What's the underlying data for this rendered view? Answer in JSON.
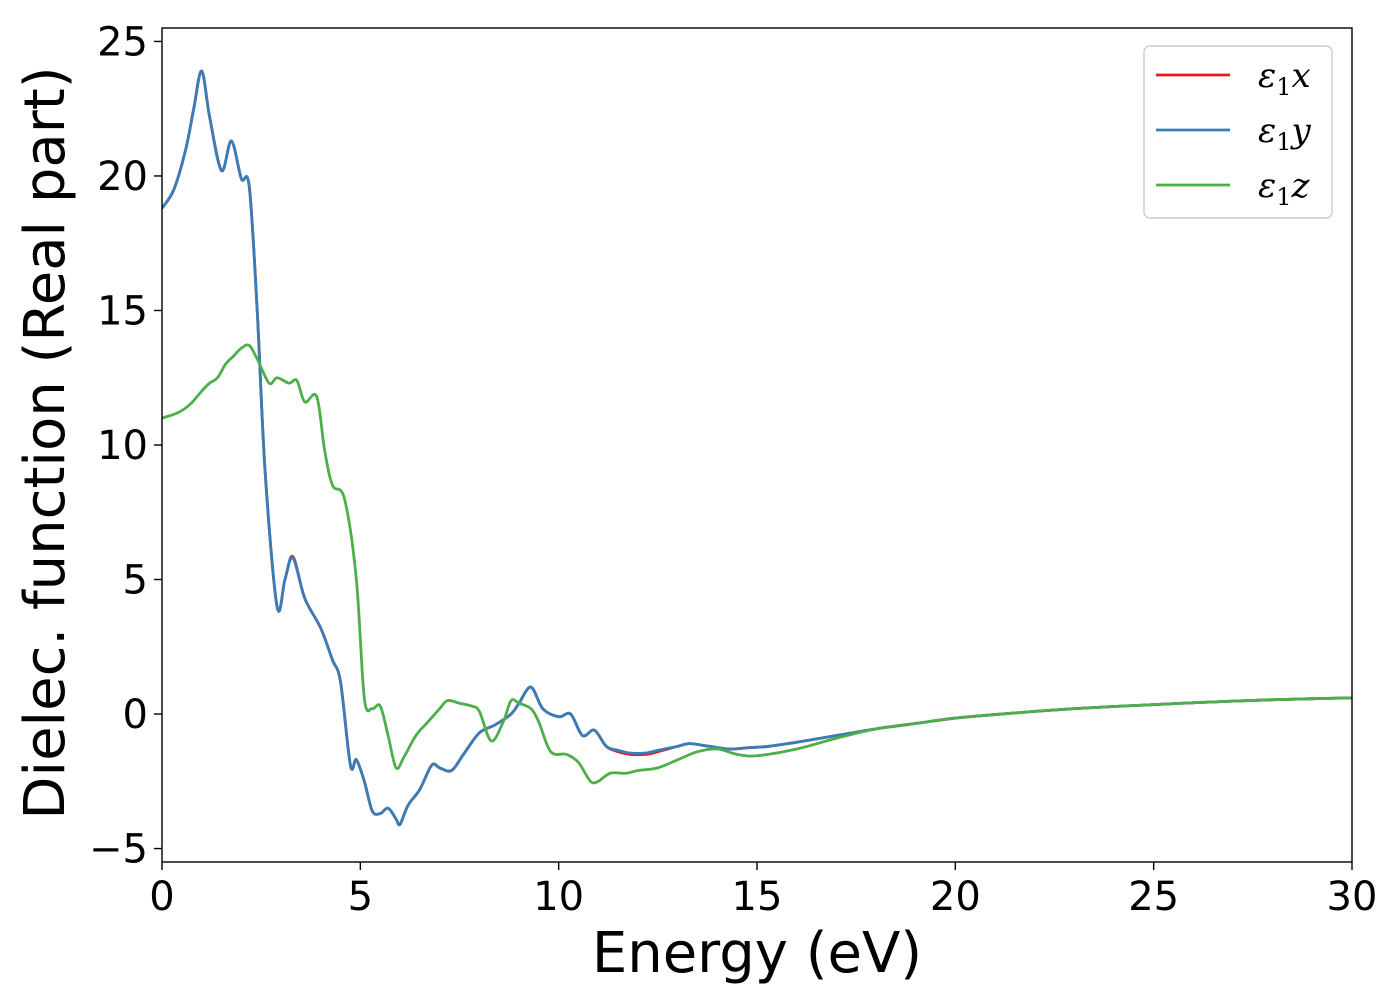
{
  "chart_data": {
    "type": "line",
    "title": "",
    "xlabel": "Energy (eV)",
    "ylabel": "Dielec. function (Real part)",
    "xlim": [
      0,
      30
    ],
    "ylim": [
      -5.5,
      25.5
    ],
    "x_ticks": [
      "0",
      "5",
      "10",
      "15",
      "20",
      "25",
      "30"
    ],
    "x_tick_values": [
      0,
      5,
      10,
      15,
      20,
      25,
      30
    ],
    "y_ticks": [
      "−5",
      "0",
      "5",
      "10",
      "15",
      "20",
      "25"
    ],
    "y_tick_values": [
      -5,
      0,
      5,
      10,
      15,
      20,
      25
    ],
    "grid": false,
    "legend_position": "top-right",
    "series": [
      {
        "legend_main": "ε",
        "legend_sub": "1",
        "legend_axis": "x",
        "color": "#e41a1c",
        "x": [
          0,
          0.3,
          0.6,
          0.8,
          1.0,
          1.2,
          1.5,
          1.75,
          2.0,
          2.2,
          2.4,
          2.6,
          2.9,
          3.1,
          3.3,
          3.6,
          4.0,
          4.3,
          4.5,
          4.75,
          4.9,
          5.1,
          5.3,
          5.5,
          5.7,
          5.9,
          6.0,
          6.2,
          6.5,
          6.8,
          7.0,
          7.3,
          7.6,
          8.0,
          8.4,
          8.8,
          9.0,
          9.3,
          9.6,
          10.0,
          10.3,
          10.6,
          10.9,
          11.2,
          11.5,
          11.8,
          12.2,
          12.5,
          13.0,
          13.3,
          13.8,
          14.3,
          14.8,
          15.3,
          16.0,
          17.0,
          18.0,
          19.0,
          20.0,
          21.0,
          22.0,
          23.0,
          24.0,
          25.0,
          26.0,
          27.0,
          28.0,
          29.0,
          30.0
        ],
        "y": [
          18.8,
          19.5,
          21.0,
          22.5,
          23.9,
          22.2,
          20.2,
          21.3,
          19.9,
          19.6,
          15.0,
          9.0,
          4.0,
          5.0,
          5.85,
          4.3,
          3.2,
          2.0,
          1.2,
          -1.9,
          -1.7,
          -2.5,
          -3.6,
          -3.7,
          -3.5,
          -3.9,
          -4.1,
          -3.4,
          -2.8,
          -1.9,
          -2.0,
          -2.1,
          -1.5,
          -0.7,
          -0.4,
          0.0,
          0.4,
          1.0,
          0.2,
          -0.1,
          0.0,
          -0.8,
          -0.6,
          -1.2,
          -1.4,
          -1.5,
          -1.5,
          -1.4,
          -1.2,
          -1.1,
          -1.2,
          -1.3,
          -1.25,
          -1.2,
          -1.05,
          -0.8,
          -0.55,
          -0.35,
          -0.15,
          -0.02,
          0.1,
          0.2,
          0.28,
          0.35,
          0.42,
          0.48,
          0.53,
          0.57,
          0.6
        ]
      },
      {
        "legend_main": "ε",
        "legend_sub": "1",
        "legend_axis": "y",
        "color": "#377eb8",
        "x": [
          0,
          0.3,
          0.6,
          0.8,
          1.0,
          1.2,
          1.5,
          1.75,
          2.0,
          2.2,
          2.4,
          2.6,
          2.9,
          3.1,
          3.3,
          3.6,
          4.0,
          4.3,
          4.5,
          4.75,
          4.9,
          5.1,
          5.3,
          5.5,
          5.7,
          5.9,
          6.0,
          6.2,
          6.5,
          6.8,
          7.0,
          7.3,
          7.6,
          8.0,
          8.4,
          8.8,
          9.0,
          9.3,
          9.6,
          10.0,
          10.3,
          10.6,
          10.9,
          11.2,
          11.5,
          11.8,
          12.2,
          12.5,
          13.0,
          13.3,
          13.8,
          14.3,
          14.8,
          15.3,
          16.0,
          17.0,
          18.0,
          19.0,
          20.0,
          21.0,
          22.0,
          23.0,
          24.0,
          25.0,
          26.0,
          27.0,
          28.0,
          29.0,
          30.0
        ],
        "y": [
          18.8,
          19.5,
          21.0,
          22.5,
          23.9,
          22.2,
          20.2,
          21.3,
          19.9,
          19.6,
          15.0,
          9.0,
          4.0,
          5.0,
          5.8,
          4.3,
          3.2,
          2.0,
          1.2,
          -1.9,
          -1.7,
          -2.5,
          -3.6,
          -3.7,
          -3.5,
          -3.9,
          -4.1,
          -3.4,
          -2.8,
          -1.9,
          -2.0,
          -2.1,
          -1.5,
          -0.7,
          -0.4,
          0.0,
          0.4,
          1.0,
          0.2,
          -0.1,
          0.0,
          -0.8,
          -0.6,
          -1.2,
          -1.35,
          -1.45,
          -1.45,
          -1.35,
          -1.2,
          -1.1,
          -1.2,
          -1.3,
          -1.25,
          -1.2,
          -1.05,
          -0.8,
          -0.55,
          -0.35,
          -0.15,
          -0.02,
          0.1,
          0.2,
          0.28,
          0.35,
          0.42,
          0.48,
          0.53,
          0.57,
          0.6
        ]
      },
      {
        "legend_main": "ε",
        "legend_sub": "1",
        "legend_axis": "z",
        "color": "#4daf4a",
        "x": [
          0,
          0.4,
          0.7,
          1.0,
          1.2,
          1.4,
          1.6,
          1.8,
          2.0,
          2.2,
          2.4,
          2.7,
          2.9,
          3.2,
          3.4,
          3.6,
          3.9,
          4.1,
          4.3,
          4.6,
          4.9,
          5.1,
          5.3,
          5.5,
          5.7,
          5.9,
          6.1,
          6.4,
          6.7,
          7.0,
          7.2,
          7.5,
          7.8,
          8.0,
          8.3,
          8.6,
          8.8,
          9.0,
          9.3,
          9.5,
          9.8,
          10.2,
          10.5,
          10.8,
          11.0,
          11.3,
          11.7,
          12.0,
          12.5,
          13.0,
          13.5,
          14.0,
          14.5,
          15.0,
          16.0,
          17.0,
          18.0,
          19.0,
          20.0,
          21.0,
          22.0,
          23.0,
          24.0,
          25.0,
          26.0,
          27.0,
          28.0,
          29.0,
          30.0
        ],
        "y": [
          11.0,
          11.2,
          11.5,
          12.0,
          12.3,
          12.5,
          13.0,
          13.3,
          13.6,
          13.7,
          13.2,
          12.3,
          12.5,
          12.3,
          12.4,
          11.6,
          11.8,
          9.8,
          8.5,
          8.0,
          5.0,
          0.6,
          0.2,
          0.3,
          -0.8,
          -2.0,
          -1.6,
          -0.8,
          -0.3,
          0.2,
          0.5,
          0.4,
          0.3,
          0.1,
          -1.0,
          -0.3,
          0.5,
          0.4,
          0.2,
          -0.3,
          -1.4,
          -1.5,
          -1.8,
          -2.5,
          -2.5,
          -2.2,
          -2.2,
          -2.1,
          -2.0,
          -1.7,
          -1.4,
          -1.3,
          -1.5,
          -1.55,
          -1.3,
          -0.9,
          -0.55,
          -0.35,
          -0.15,
          -0.02,
          0.1,
          0.2,
          0.28,
          0.35,
          0.42,
          0.48,
          0.53,
          0.57,
          0.6
        ]
      }
    ]
  }
}
